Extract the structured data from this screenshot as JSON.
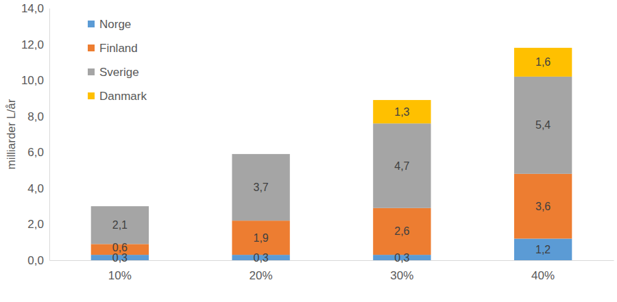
{
  "chart_data": {
    "type": "bar",
    "stacked": true,
    "data_labels": true,
    "grid": false,
    "legend": "upper left",
    "y_label": "milliarder L/år",
    "categories": [
      "10%",
      "20%",
      "30%",
      "40%"
    ],
    "ylim": [
      0,
      14
    ],
    "yticks": [
      {
        "value": 0,
        "label": "0,0"
      },
      {
        "value": 2,
        "label": "2,0"
      },
      {
        "value": 4,
        "label": "4,0"
      },
      {
        "value": 6,
        "label": "6,0"
      },
      {
        "value": 8,
        "label": "8,0"
      },
      {
        "value": 10,
        "label": "10,0"
      },
      {
        "value": 12,
        "label": "12,0"
      },
      {
        "value": 14,
        "label": "14,0"
      }
    ],
    "series": [
      {
        "name": "Norge",
        "color": "#5b9bd5",
        "values": [
          0.3,
          0.3,
          0.3,
          1.2
        ],
        "value_labels": [
          "0,3",
          "0,3",
          "0,3",
          "1,2"
        ]
      },
      {
        "name": "Finland",
        "color": "#ed7d31",
        "values": [
          0.6,
          1.9,
          2.6,
          3.6
        ],
        "value_labels": [
          "0,6",
          "1,9",
          "2,6",
          "3,6"
        ]
      },
      {
        "name": "Sverige",
        "color": "#a5a5a5",
        "values": [
          2.1,
          3.7,
          4.7,
          5.4
        ],
        "value_labels": [
          "2,1",
          "3,7",
          "4,7",
          "5,4"
        ]
      },
      {
        "name": "Danmark",
        "color": "#ffc000",
        "values": [
          null,
          null,
          1.3,
          1.6
        ],
        "value_labels": [
          null,
          null,
          "1,3",
          "1,6"
        ]
      }
    ]
  }
}
